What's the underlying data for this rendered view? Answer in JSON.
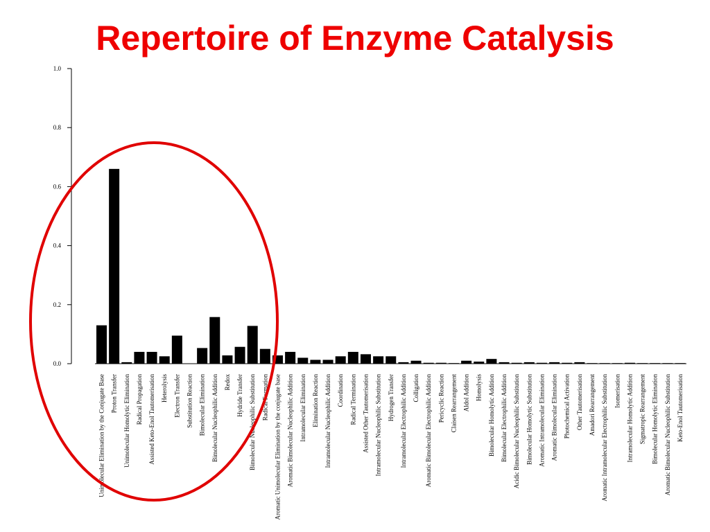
{
  "chart_data": {
    "type": "bar",
    "title": "Repertoire of Enzyme Catalysis",
    "color": "#000000",
    "categories": [
      "Unimolecular Elimination by the Conjugate Base",
      "Proton Transfer",
      "Unimolecular Homolytic Elimination",
      "Radical Propagation",
      "Assisted Keto-Enol Tautomerisation",
      "Heterolysis",
      "Electron Transfer",
      "Substitution Reaction",
      "Bimolecular Elimination",
      "Bimolecular Nucleophilic Addition",
      "Redox",
      "Hydride Transfer",
      "Bimolecular Nucleophilic Substitution",
      "Radical Formation",
      "Aromatic Unimolecular Elimination by the conjugate base",
      "Aromatic Bimolecular Nucleophilic Addition",
      "Intramolecular Elimination",
      "Elimination Reaction",
      "Intramolecular Nucleophilic Addition",
      "Coordination",
      "Radical Termination",
      "Assisted Other Tautomerisation",
      "Intramolecular Nucleophilic Substitution",
      "Hydrogen Transfer",
      "Intramolecular Electrophilic Addition",
      "Colligation",
      "Aromatic Bimolecular Electrophilic Addition",
      "Pericyclic Reaction",
      "Claisen Rearrangement",
      "Aldol Addition",
      "Homolysis",
      "Bimolecular Homolytic Addition",
      "Bimolecular Electrophilic Addition",
      "Acidic Bimolecular Nucleophilic Substitution",
      "Bimolecular Homolytic Substitution",
      "Aromatic Intramolecular Elimination",
      "Aromatic Bimolecular Elimination",
      "Photochemical Activation",
      "Other Tautomerisation",
      "Amadori Rearrangement",
      "Aromatic Intramolecular Electrophilic Substitution",
      "Isomerisation",
      "Intramolecular Homolytic Addition",
      "Sigmatropic Rearrangement",
      "Bimolecular Homolytic Elimination",
      "Aromatic Bimolecular Nucleophilic Substitution",
      "Keto-Enol Tautomerisation"
    ],
    "values": [
      0.13,
      0.66,
      0.005,
      0.04,
      0.04,
      0.025,
      0.095,
      0.0,
      0.053,
      0.158,
      0.028,
      0.057,
      0.128,
      0.05,
      0.028,
      0.04,
      0.02,
      0.013,
      0.013,
      0.025,
      0.04,
      0.032,
      0.025,
      0.025,
      0.005,
      0.01,
      0.003,
      0.003,
      0.002,
      0.01,
      0.007,
      0.016,
      0.005,
      0.003,
      0.005,
      0.003,
      0.005,
      0.003,
      0.005,
      0.002,
      0.002,
      0.002,
      0.003,
      0.002,
      0.002,
      0.002,
      0.002
    ],
    "ylim": [
      0,
      1.0
    ],
    "yticks": [
      {
        "value": 0,
        "label": "0.0"
      },
      0.2,
      0.4,
      0.6,
      0.8,
      {
        "value": 1.0,
        "label": "1.0"
      }
    ]
  }
}
